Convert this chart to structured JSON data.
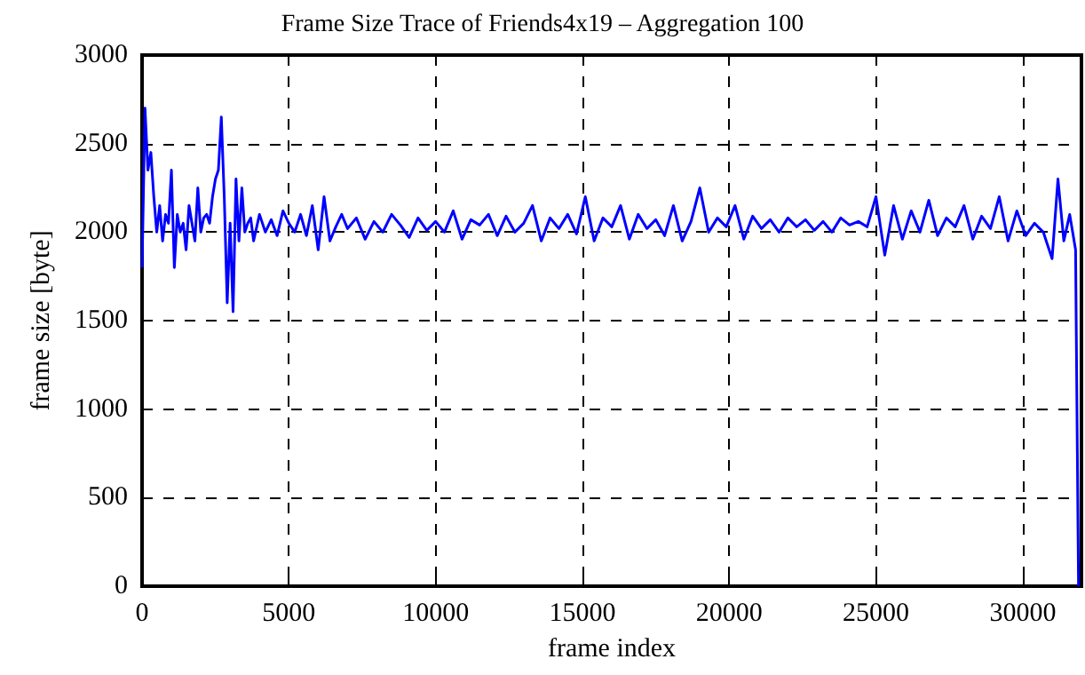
{
  "chart_data": {
    "type": "line",
    "title": "Frame Size Trace of Friends4x19 – Aggregation 100",
    "xlabel": "frame index",
    "ylabel": "frame size [byte]",
    "x": [
      0,
      100,
      200,
      300,
      400,
      500,
      600,
      700,
      800,
      900,
      1000,
      1100,
      1200,
      1300,
      1400,
      1500,
      1600,
      1700,
      1800,
      1900,
      2000,
      2100,
      2200,
      2300,
      2400,
      2500,
      2600,
      2700,
      2800,
      2900,
      3000,
      3100,
      3200,
      3300,
      3400,
      3500,
      3600,
      3700,
      3800,
      4000,
      4200,
      4400,
      4600,
      4800,
      5000,
      5200,
      5400,
      5600,
      5800,
      6000,
      6200,
      6400,
      6600,
      6800,
      7000,
      7300,
      7600,
      7900,
      8200,
      8500,
      8800,
      9100,
      9400,
      9700,
      10000,
      10300,
      10600,
      10900,
      11200,
      11500,
      11800,
      12100,
      12400,
      12700,
      13000,
      13300,
      13600,
      13900,
      14200,
      14500,
      14800,
      15100,
      15400,
      15700,
      16000,
      16300,
      16600,
      16900,
      17200,
      17500,
      17800,
      18100,
      18400,
      18700,
      19000,
      19300,
      19600,
      19900,
      20200,
      20500,
      20800,
      21100,
      21400,
      21700,
      22000,
      22300,
      22600,
      22900,
      23200,
      23500,
      23800,
      24100,
      24400,
      24700,
      25000,
      25300,
      25600,
      25900,
      26200,
      26500,
      26800,
      27100,
      27400,
      27700,
      28000,
      28300,
      28600,
      28900,
      29200,
      29500,
      29800,
      30100,
      30400,
      30700,
      31000,
      31200,
      31400,
      31600,
      31700,
      31800,
      31900
    ],
    "series": [
      {
        "color": "#0000ff",
        "values": [
          1800,
          2700,
          2350,
          2450,
          2200,
          2000,
          2150,
          1950,
          2100,
          2050,
          2350,
          1800,
          2100,
          2000,
          2050,
          1900,
          2150,
          2050,
          1950,
          2250,
          2000,
          2080,
          2100,
          2050,
          2200,
          2300,
          2350,
          2650,
          2200,
          1600,
          2050,
          1550,
          2300,
          1950,
          2250,
          2000,
          2050,
          2080,
          1950,
          2100,
          2000,
          2070,
          1980,
          2120,
          2050,
          2000,
          2100,
          1980,
          2150,
          1900,
          2200,
          1950,
          2030,
          2100,
          2020,
          2080,
          1960,
          2060,
          2000,
          2100,
          2040,
          1970,
          2080,
          2010,
          2060,
          2000,
          2120,
          1960,
          2070,
          2040,
          2100,
          1980,
          2090,
          2000,
          2050,
          2150,
          1950,
          2080,
          2020,
          2100,
          1990,
          2200,
          1950,
          2080,
          2030,
          2150,
          1960,
          2100,
          2020,
          2070,
          1980,
          2150,
          1950,
          2060,
          2250,
          2000,
          2080,
          2030,
          2150,
          1960,
          2090,
          2020,
          2070,
          2000,
          2080,
          2030,
          2070,
          2010,
          2060,
          2000,
          2080,
          2040,
          2060,
          2030,
          2200,
          1870,
          2150,
          1960,
          2120,
          2000,
          2180,
          1980,
          2080,
          2030,
          2150,
          1960,
          2090,
          2020,
          2200,
          1950,
          2120,
          1980,
          2050,
          2000,
          1850,
          2300,
          1950,
          2100,
          2000,
          1900,
          0
        ]
      }
    ],
    "xlim": [
      0,
      32000
    ],
    "xticks": [
      0,
      5000,
      10000,
      15000,
      20000,
      25000,
      30000
    ],
    "ylim": [
      0,
      3000
    ],
    "yticks": [
      0,
      500,
      1000,
      1500,
      2000,
      2500,
      3000
    ],
    "grid": true,
    "marker": "none",
    "line_style": "solid"
  }
}
